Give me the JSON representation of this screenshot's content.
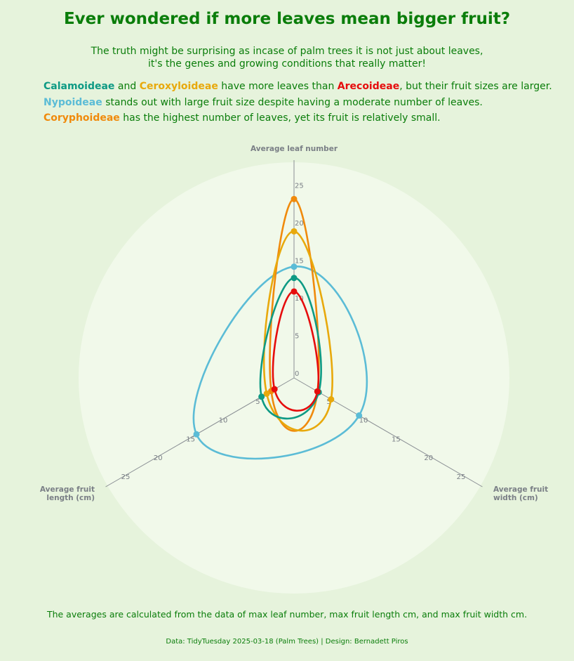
{
  "header": {
    "title": "Ever wondered if more leaves mean bigger fruit?",
    "subtitle_line1": "The truth might be surprising as incase of palm trees it is not just about leaves,",
    "subtitle_line2": "it's the genes and growing conditions that really matter!"
  },
  "notes": {
    "line1": {
      "fam_a": "Calamoideae",
      "t1": " and ",
      "fam_b": "Ceroxyloideae",
      "t2": " have more leaves than ",
      "fam_c": "Arecoideae",
      "t3": ", but their fruit sizes are larger."
    },
    "line2": {
      "fam": "Nypoideae",
      "text": " stands out with large fruit size despite having a moderate number of leaves."
    },
    "line3": {
      "fam": "Coryphoideae",
      "text": " has the highest number of leaves, yet its fruit is relatively small."
    }
  },
  "colors": {
    "Calamoideae": "#0e9a84",
    "Ceroxyloideae": "#e8a90c",
    "Arecoideae": "#e60d0d",
    "Nypoideae": "#5bbcd6",
    "Coryphoideae": "#f08a0c",
    "background": "#e6f3dc",
    "plot_background": "#f1f9ea",
    "axis": "#7a7f86",
    "text": "#0a7d0a"
  },
  "chart_data": {
    "type": "radar",
    "axes": [
      "Average leaf number",
      "Average fruit width (cm)",
      "Average fruit length (cm)"
    ],
    "axis_title_lines": {
      "leaf": [
        "Average leaf number"
      ],
      "width": [
        "Average fruit",
        "width (cm)"
      ],
      "length": [
        "Average fruit",
        "length (cm)"
      ]
    },
    "ticks": [
      0,
      5,
      10,
      15,
      20,
      25
    ],
    "rlim": [
      0,
      28.5
    ],
    "series": [
      {
        "name": "Nypoideae",
        "values": [
          14.8,
          10.0,
          15.0
        ]
      },
      {
        "name": "Coryphoideae",
        "values": [
          23.8,
          3.6,
          3.5
        ]
      },
      {
        "name": "Ceroxyloideae",
        "values": [
          19.5,
          5.7,
          4.2
        ]
      },
      {
        "name": "Calamoideae",
        "values": [
          13.3,
          3.8,
          5.0
        ]
      },
      {
        "name": "Arecoideae",
        "values": [
          11.5,
          3.6,
          3.0
        ]
      }
    ]
  },
  "footer": {
    "note": "The averages are calculated from the data of max leaf number, max fruit length cm, and max fruit width cm.",
    "credit": "Data: TidyTuesday 2025-03-18 (Palm Trees) | Design: Bernadett Piros"
  }
}
